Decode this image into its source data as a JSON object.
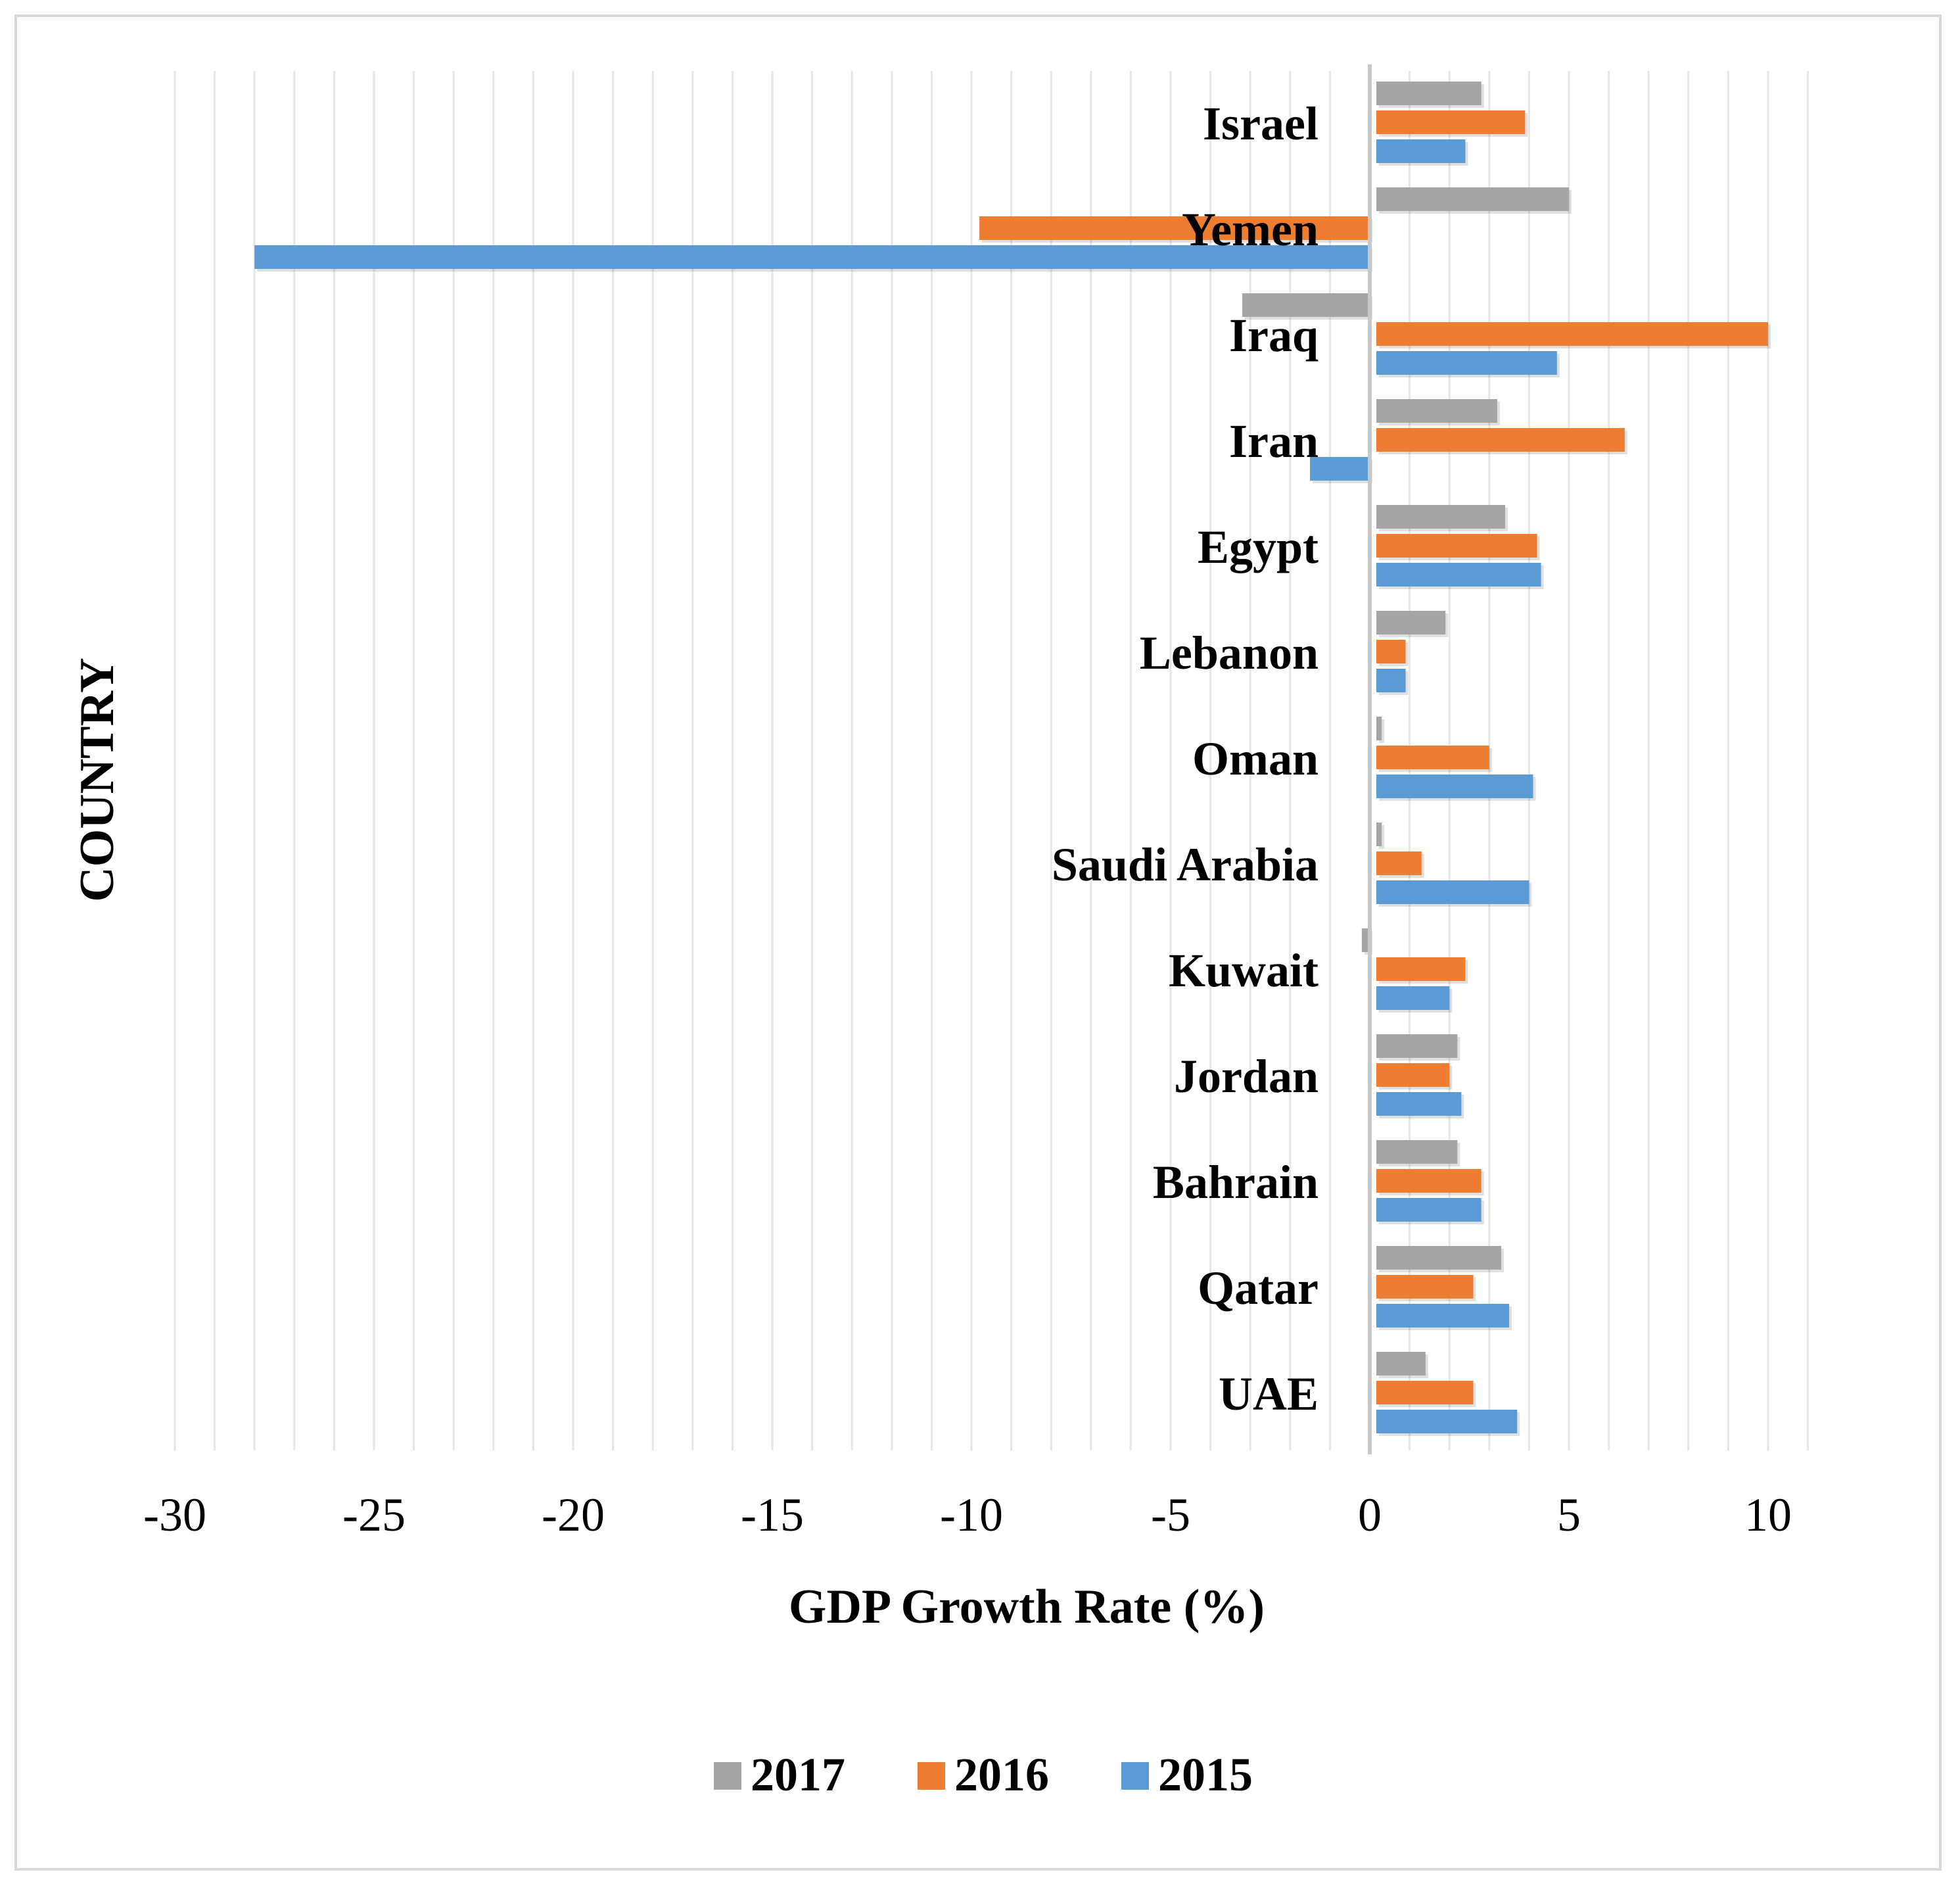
{
  "chart_data": {
    "type": "bar",
    "orientation": "horizontal",
    "title": "",
    "xlabel": "GDP Growth Rate (%)",
    "ylabel": "COUNTRY",
    "xlim": [
      -30,
      12
    ],
    "xticks": [
      -30,
      -25,
      -20,
      -15,
      -10,
      -5,
      0,
      5,
      10
    ],
    "grid": "vertical",
    "legend_position": "bottom",
    "categories": [
      "Israel",
      "Yemen",
      "Iraq",
      "Iran",
      "Egypt",
      "Lebanon",
      "Oman",
      "Saudi Arabia",
      "Kuwait",
      "Jordan",
      "Bahrain",
      "Qatar",
      "UAE"
    ],
    "series": [
      {
        "name": "2017",
        "color": "#a5a5a5",
        "values": [
          2.8,
          5.0,
          -3.2,
          3.2,
          3.4,
          1.9,
          0.3,
          0.3,
          -0.2,
          2.2,
          2.2,
          3.3,
          1.4
        ]
      },
      {
        "name": "2016",
        "color": "#ed7d31",
        "values": [
          3.9,
          -9.8,
          10.0,
          6.4,
          4.2,
          0.9,
          3.0,
          1.3,
          2.4,
          2.0,
          2.8,
          2.6,
          2.6
        ]
      },
      {
        "name": "2015",
        "color": "#5b9bd5",
        "values": [
          2.4,
          -28.0,
          4.7,
          -1.5,
          4.3,
          0.9,
          4.1,
          4.0,
          2.0,
          2.3,
          2.8,
          3.5,
          3.7
        ]
      }
    ]
  }
}
